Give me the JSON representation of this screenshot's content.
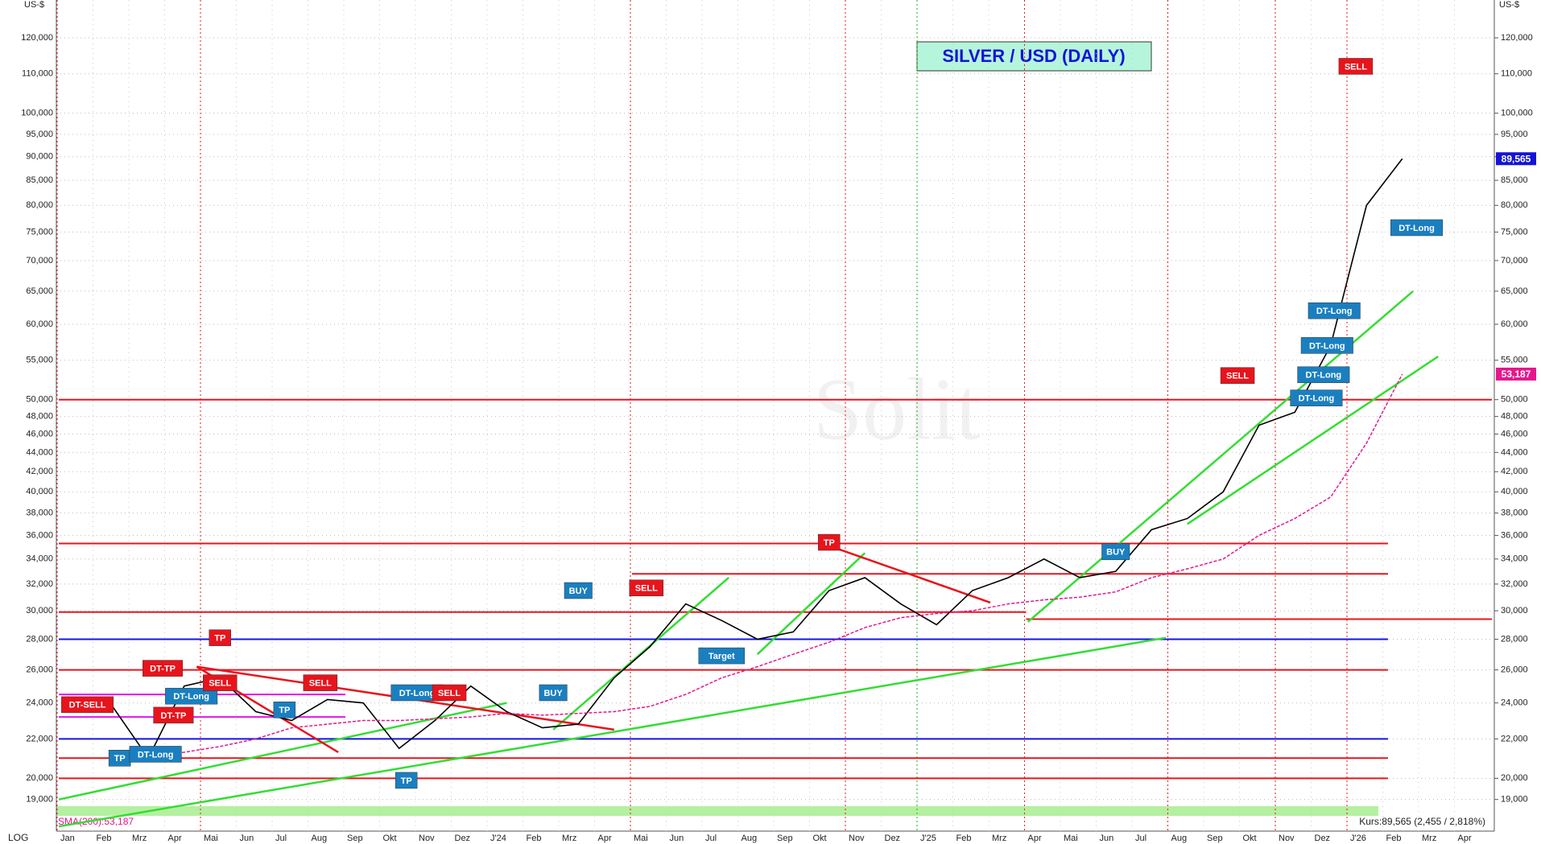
{
  "chart_data": {
    "type": "line",
    "title": "SILVER / USD  (DAILY)",
    "y_unit": "US-$",
    "scale_label": "LOG",
    "log_scale": true,
    "watermark": "Solit",
    "categories": [
      "Jan",
      "Feb",
      "Mrz",
      "Apr",
      "Mai",
      "Jun",
      "Jul",
      "Aug",
      "Sep",
      "Okt",
      "Nov",
      "Dez",
      "J'24",
      "Feb",
      "Mrz",
      "Apr",
      "Mai",
      "Jun",
      "Jul",
      "Aug",
      "Sep",
      "Okt",
      "Nov",
      "Dez",
      "J'25",
      "Feb",
      "Mrz",
      "Apr",
      "Mai",
      "Jun",
      "Jul",
      "Aug",
      "Sep",
      "Okt",
      "Nov",
      "Dez",
      "J'26",
      "Feb",
      "Mrz",
      "Apr"
    ],
    "series": [
      {
        "name": "Silver",
        "color": "#000000",
        "values": [
          24.0,
          23.8,
          21.0,
          25.0,
          25.5,
          23.5,
          23.0,
          24.2,
          24.0,
          21.5,
          23.0,
          25.0,
          23.5,
          22.6,
          22.8,
          25.5,
          27.5,
          30.5,
          29.3,
          28.0,
          28.5,
          31.5,
          32.5,
          30.5,
          29.0,
          31.5,
          32.5,
          34.0,
          32.5,
          33.0,
          36.5,
          37.5,
          40.0,
          47.0,
          48.5,
          57.0,
          80.0,
          89.565,
          null,
          null
        ]
      },
      {
        "name": "SMA(200):53,187",
        "color": "#e6168c",
        "values": [
          null,
          null,
          21.1,
          21.3,
          21.6,
          22.0,
          22.6,
          22.8,
          23.0,
          23.0,
          23.1,
          23.2,
          23.4,
          23.3,
          23.4,
          23.5,
          23.8,
          24.5,
          25.5,
          26.2,
          27.0,
          27.8,
          28.8,
          29.5,
          29.8,
          30.0,
          30.5,
          30.8,
          31.0,
          31.4,
          32.5,
          33.2,
          34.0,
          36.0,
          37.5,
          39.5,
          45.0,
          53.187,
          null,
          null
        ]
      }
    ],
    "price_tag": {
      "value": 89.565,
      "label": "89,565"
    },
    "sma_tag": {
      "value": 53.187,
      "label": "53,187"
    },
    "quote": "Kurs:89,565 (2,455 / 2,818%)",
    "ylim": [
      17.6,
      131.5
    ],
    "yticks": [
      {
        "value": 19,
        "label": "19,000"
      },
      {
        "value": 20,
        "label": "20,000"
      },
      {
        "value": 22,
        "label": "22,000"
      },
      {
        "value": 24,
        "label": "24,000"
      },
      {
        "value": 26,
        "label": "26,000"
      },
      {
        "value": 28,
        "label": "28,000"
      },
      {
        "value": 30,
        "label": "30,000"
      },
      {
        "value": 32,
        "label": "32,000"
      },
      {
        "value": 34,
        "label": "34,000"
      },
      {
        "value": 36,
        "label": "36,000"
      },
      {
        "value": 38,
        "label": "38,000"
      },
      {
        "value": 40,
        "label": "40,000"
      },
      {
        "value": 42,
        "label": "42,000"
      },
      {
        "value": 44,
        "label": "44,000"
      },
      {
        "value": 46,
        "label": "46,000"
      },
      {
        "value": 48,
        "label": "48,000"
      },
      {
        "value": 50,
        "label": "50,000"
      },
      {
        "value": 55,
        "label": "55,000"
      },
      {
        "value": 60,
        "label": "60,000"
      },
      {
        "value": 65,
        "label": "65,000"
      },
      {
        "value": 70,
        "label": "70,000"
      },
      {
        "value": 75,
        "label": "75,000"
      },
      {
        "value": 80,
        "label": "80,000"
      },
      {
        "value": 85,
        "label": "85,000"
      },
      {
        "value": 90,
        "label": "90,000"
      },
      {
        "value": 95,
        "label": "95,000"
      },
      {
        "value": 100,
        "label": "100,000"
      },
      {
        "value": 110,
        "label": "110,000"
      },
      {
        "value": 120,
        "label": "120,000"
      }
    ],
    "grid": true,
    "levels": [
      {
        "value": 50,
        "color": "#e8141c",
        "from": 0,
        "to": 40
      },
      {
        "value": 35.3,
        "color": "#e8141c",
        "from": 0,
        "to": 37.1
      },
      {
        "value": 32.8,
        "color": "#e8141c",
        "from": 16,
        "to": 37.1
      },
      {
        "value": 29.9,
        "color": "#e8141c",
        "from": 0,
        "to": 27
      },
      {
        "value": 29.4,
        "color": "#e8141c",
        "from": 27,
        "to": 40
      },
      {
        "value": 26,
        "color": "#e8141c",
        "from": 0,
        "to": 37.1
      },
      {
        "value": 21,
        "color": "#e8141c",
        "from": 0,
        "to": 37.1
      },
      {
        "value": 20,
        "color": "#e8141c",
        "from": 0,
        "to": 37.1
      },
      {
        "value": 28,
        "color": "#1414e6",
        "from": 0,
        "to": 37.1
      },
      {
        "value": 22,
        "color": "#1414e6",
        "from": 0,
        "to": 37.1
      },
      {
        "value": 24.5,
        "color": "#e614e6",
        "from": 0,
        "to": 8
      },
      {
        "value": 23.2,
        "color": "#e614e6",
        "from": 0,
        "to": 8
      }
    ],
    "trendlines": [
      {
        "color": "#33dd33",
        "from": [
          0,
          19
        ],
        "to": [
          12.5,
          24
        ]
      },
      {
        "color": "#33dd33",
        "from": [
          0,
          17.8
        ],
        "to": [
          30.9,
          28.1
        ]
      },
      {
        "color": "#33dd33",
        "from": [
          13.8,
          22.5
        ],
        "to": [
          18.7,
          32.5
        ]
      },
      {
        "color": "#33dd33",
        "from": [
          19.5,
          27
        ],
        "to": [
          22.5,
          34.5
        ]
      },
      {
        "color": "#33dd33",
        "from": [
          27.05,
          29.2
        ],
        "to": [
          37.8,
          65
        ]
      },
      {
        "color": "#33dd33",
        "from": [
          31.5,
          37
        ],
        "to": [
          38.5,
          55.5
        ]
      },
      {
        "color": "#e8141c",
        "from": [
          3.85,
          26.2
        ],
        "to": [
          7.8,
          21.3
        ]
      },
      {
        "color": "#e8141c",
        "from": [
          3.85,
          26.2
        ],
        "to": [
          15.5,
          22.5
        ]
      },
      {
        "color": "#e8141c",
        "from": [
          21.6,
          35
        ],
        "to": [
          26,
          30.6
        ]
      }
    ],
    "annotations": [
      {
        "text": "DT-SELL",
        "x": 0.8,
        "value": 23.9,
        "color": "#e8141c"
      },
      {
        "text": "TP",
        "x": 1.7,
        "value": 21,
        "color": "#1a7fc0"
      },
      {
        "text": "DT-Long",
        "x": 2.7,
        "value": 21.2,
        "color": "#1a7fc0"
      },
      {
        "text": "DT-TP",
        "x": 2.9,
        "value": 26.1,
        "color": "#e8141c"
      },
      {
        "text": "DT-TP",
        "x": 3.2,
        "value": 23.3,
        "color": "#e8141c"
      },
      {
        "text": "DT-Long",
        "x": 3.7,
        "value": 24.4,
        "color": "#1a7fc0"
      },
      {
        "text": "SELL",
        "x": 4.5,
        "value": 25.2,
        "color": "#e8141c"
      },
      {
        "text": "TP",
        "x": 4.5,
        "value": 28.1,
        "color": "#e8141c"
      },
      {
        "text": "TP",
        "x": 6.3,
        "value": 23.6,
        "color": "#1a7fc0"
      },
      {
        "text": "SELL",
        "x": 7.3,
        "value": 25.2,
        "color": "#e8141c"
      },
      {
        "text": "DT-Long",
        "x": 10.0,
        "value": 24.6,
        "color": "#1a7fc0"
      },
      {
        "text": "TP",
        "x": 9.7,
        "value": 19.9,
        "color": "#1a7fc0"
      },
      {
        "text": "SELL",
        "x": 10.9,
        "value": 24.6,
        "color": "#e8141c"
      },
      {
        "text": "BUY",
        "x": 13.8,
        "value": 24.6,
        "color": "#1a7fc0"
      },
      {
        "text": "BUY",
        "x": 14.5,
        "value": 31.5,
        "color": "#1a7fc0"
      },
      {
        "text": "SELL",
        "x": 16.4,
        "value": 31.7,
        "color": "#e8141c"
      },
      {
        "text": "Target",
        "x": 18.5,
        "value": 26.9,
        "color": "#1a7fc0"
      },
      {
        "text": "TP",
        "x": 21.5,
        "value": 35.4,
        "color": "#e8141c"
      },
      {
        "text": "BUY",
        "x": 29.5,
        "value": 34.6,
        "color": "#1a7fc0"
      },
      {
        "text": "SELL",
        "x": 32.9,
        "value": 53,
        "color": "#e8141c"
      },
      {
        "text": "DT-Long",
        "x": 35.1,
        "value": 50.2,
        "color": "#1a7fc0"
      },
      {
        "text": "DT-Long",
        "x": 35.3,
        "value": 53.1,
        "color": "#1a7fc0"
      },
      {
        "text": "DT-Long",
        "x": 35.4,
        "value": 57,
        "color": "#1a7fc0"
      },
      {
        "text": "DT-Long",
        "x": 35.6,
        "value": 62,
        "color": "#1a7fc0"
      },
      {
        "text": "SELL",
        "x": 36.2,
        "value": 112,
        "color": "#e8141c"
      },
      {
        "text": "DT-Long",
        "x": 37.9,
        "value": 75.8,
        "color": "#1a7fc0"
      }
    ]
  }
}
